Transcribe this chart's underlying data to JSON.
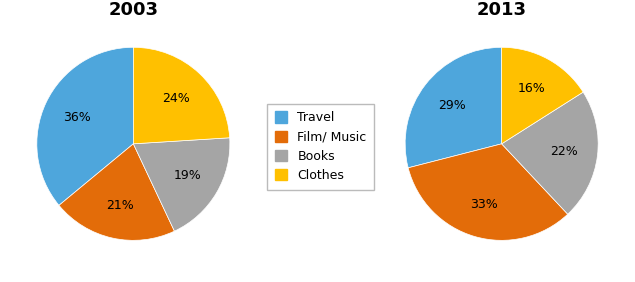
{
  "title_2003": "2003",
  "title_2013": "2013",
  "labels": [
    "Travel",
    "Film/ Music",
    "Books",
    "Clothes"
  ],
  "values_2003": [
    36,
    21,
    19,
    24
  ],
  "values_2013": [
    29,
    33,
    22,
    16
  ],
  "colors": [
    "#4EA6DC",
    "#E36C09",
    "#A5A5A5",
    "#FFC000"
  ],
  "background_color": "#FFFFFF",
  "title_fontsize": 13,
  "legend_fontsize": 9,
  "label_fontsize": 9
}
